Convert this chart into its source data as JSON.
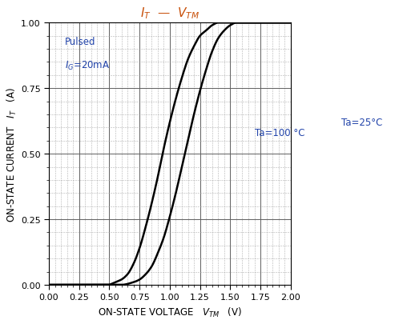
{
  "title_color_var": "#c8500a",
  "title_color_line": "#000000",
  "xlabel_main": "ON-STATE VOLTAGE",
  "xlabel_sub": "V",
  "xlabel_unit": "(V)",
  "ylabel_main": "ON-STATE CURRENT",
  "ylabel_sub": "I",
  "ylabel_unit": "(A)",
  "xlim": [
    0.0,
    2.0
  ],
  "ylim": [
    0.0,
    1.0
  ],
  "xticks_major": [
    0.0,
    0.25,
    0.5,
    0.75,
    1.0,
    1.25,
    1.5,
    1.75,
    2.0
  ],
  "yticks_major": [
    0.0,
    0.25,
    0.5,
    0.75,
    1.0
  ],
  "annotation_pulsed_line1": "Pulsed",
  "annotation_pulsed_line2": "I",
  "annotation_100": "Ta=100 °C",
  "annotation_25": "Ta=25°C",
  "line_color": "#000000",
  "background_color": "#ffffff",
  "grid_major_color": "#606060",
  "grid_minor_color": "#a0a0a0",
  "curve25_pts_v": [
    0.5,
    0.6,
    0.7,
    0.75,
    0.8,
    0.85,
    0.9,
    0.95,
    1.0,
    1.05,
    1.1,
    1.15,
    1.2,
    1.25,
    1.3,
    1.35,
    1.4,
    1.45,
    1.5,
    1.55,
    1.6
  ],
  "curve25_pts_i": [
    0.0,
    0.0,
    0.01,
    0.02,
    0.04,
    0.07,
    0.12,
    0.18,
    0.26,
    0.35,
    0.45,
    0.55,
    0.65,
    0.74,
    0.82,
    0.89,
    0.94,
    0.97,
    0.99,
    1.0,
    1.0
  ],
  "curve100_pts_v": [
    0.5,
    0.55,
    0.6,
    0.65,
    0.7,
    0.75,
    0.8,
    0.85,
    0.9,
    0.95,
    1.0,
    1.05,
    1.1,
    1.15,
    1.2,
    1.25,
    1.3,
    1.35,
    1.4,
    1.45,
    1.5
  ],
  "curve100_pts_i": [
    0.0,
    0.01,
    0.02,
    0.04,
    0.08,
    0.14,
    0.22,
    0.31,
    0.41,
    0.52,
    0.62,
    0.71,
    0.79,
    0.86,
    0.91,
    0.95,
    0.97,
    0.99,
    1.0,
    1.0,
    1.0
  ]
}
